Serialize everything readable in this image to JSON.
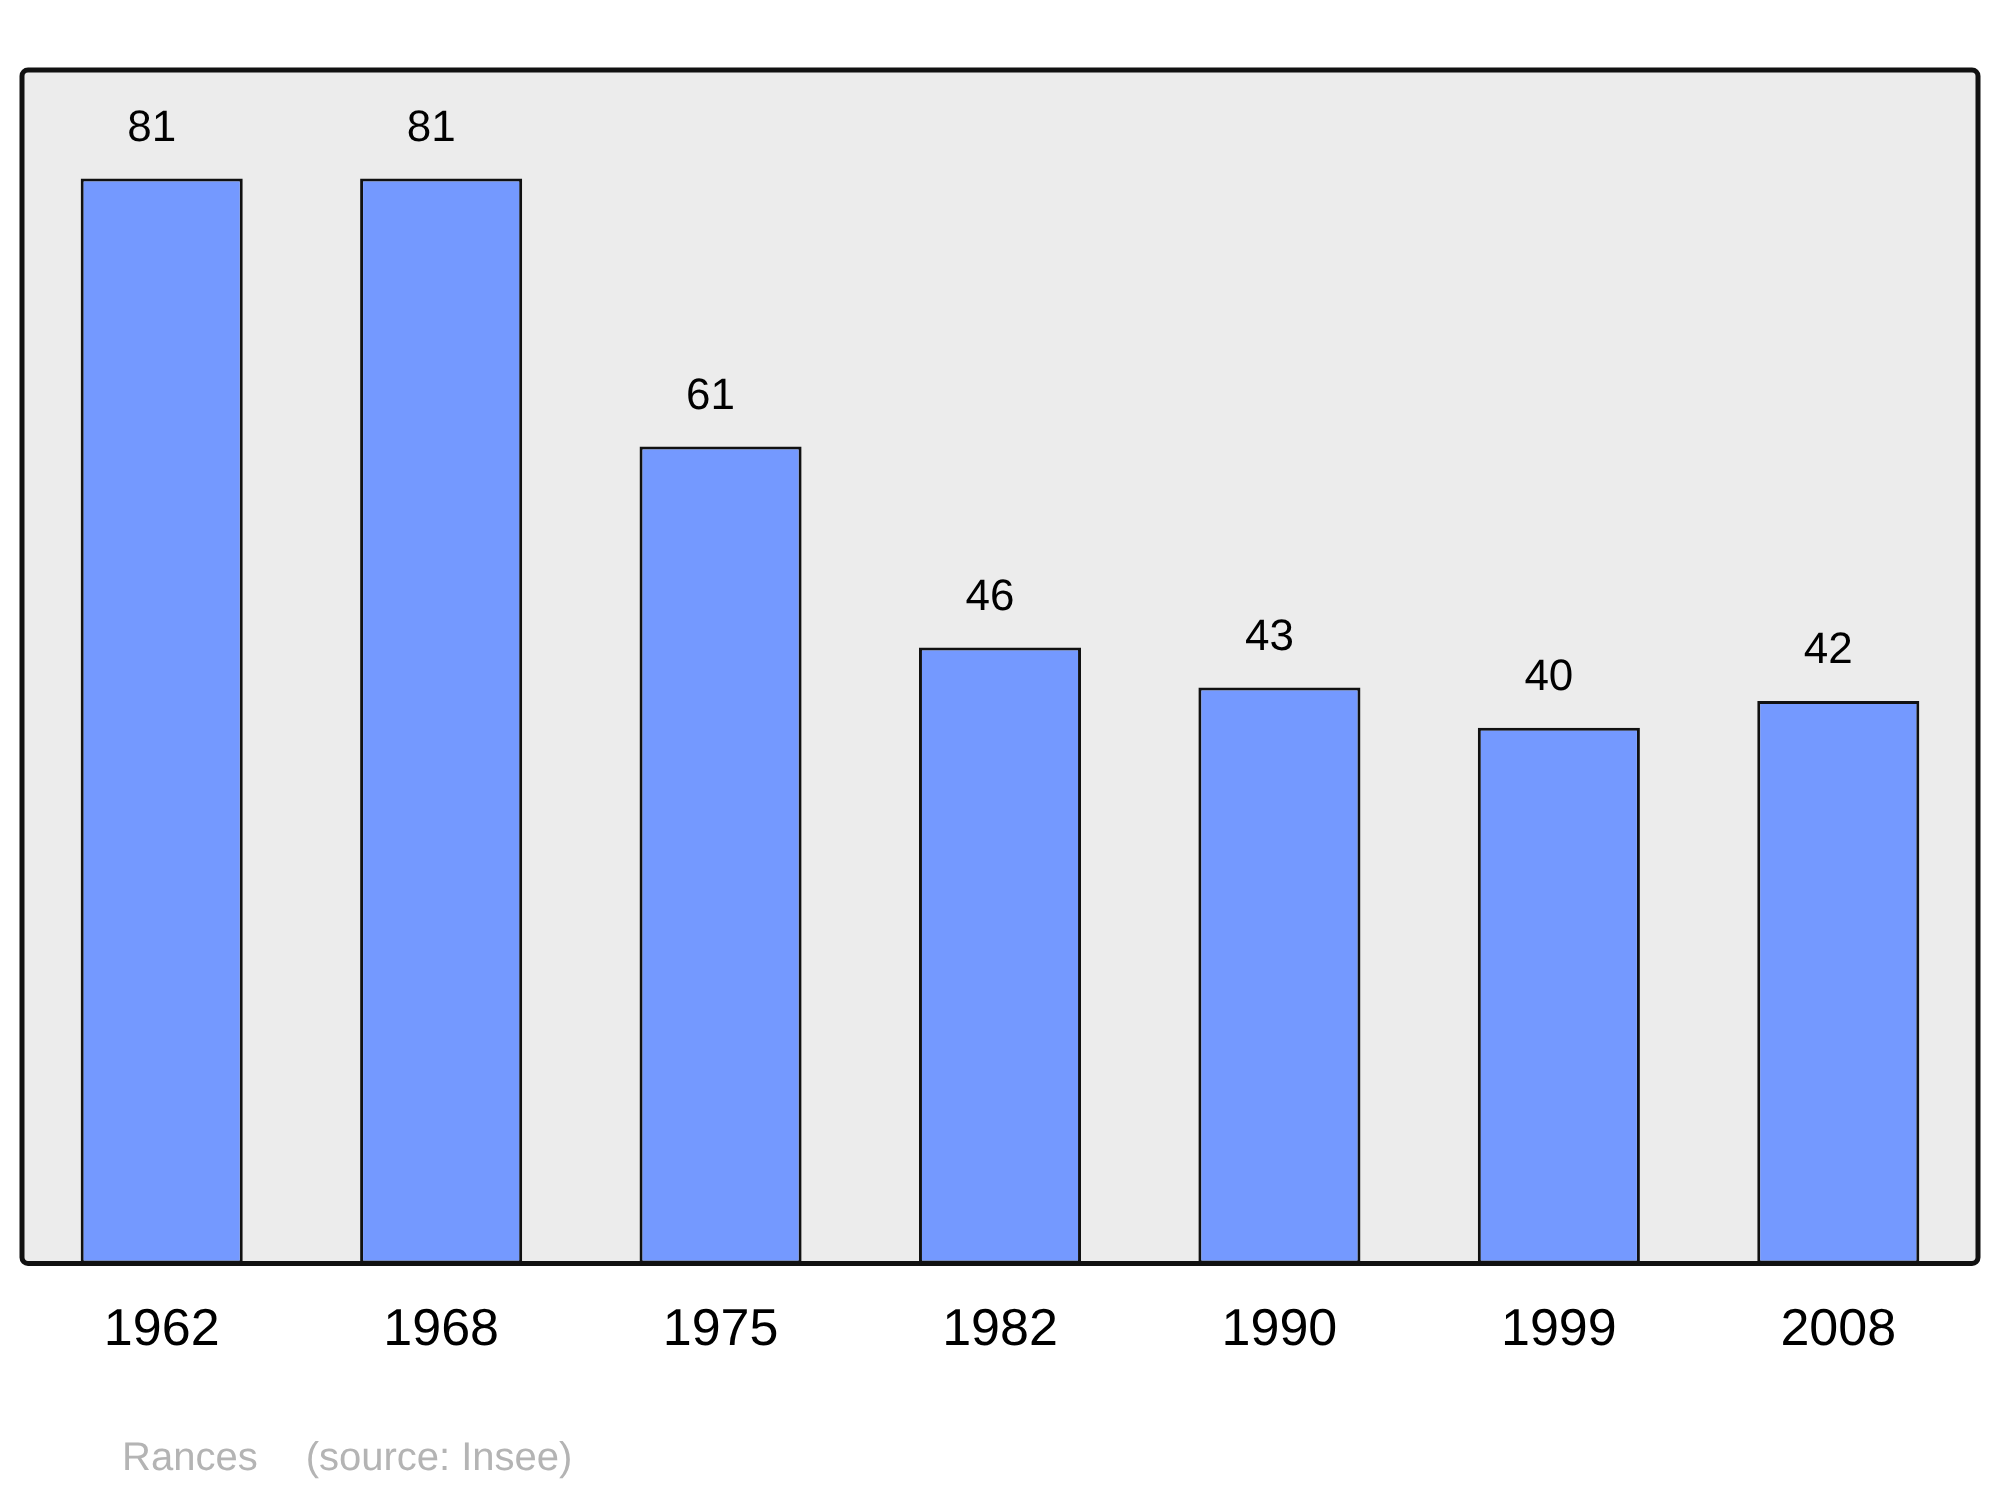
{
  "chart_data": {
    "type": "bar",
    "categories": [
      "1962",
      "1968",
      "1975",
      "1982",
      "1990",
      "1999",
      "2008"
    ],
    "values": [
      81,
      81,
      61,
      46,
      43,
      40,
      42
    ],
    "color": "#7499ff",
    "data_labels": true,
    "grid": false,
    "legend": false,
    "annotations": [
      "Rances",
      "(source: Insee)"
    ]
  }
}
